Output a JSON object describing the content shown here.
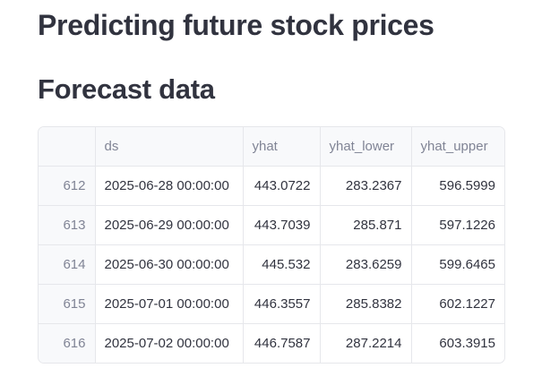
{
  "page": {
    "title": "Predicting future stock prices",
    "section_title": "Forecast data"
  },
  "table": {
    "columns": [
      "",
      "ds",
      "yhat",
      "yhat_lower",
      "yhat_upper"
    ],
    "rows": [
      {
        "index": "612",
        "ds": "2025-06-28 00:00:00",
        "yhat": "443.0722",
        "yhat_lower": "283.2367",
        "yhat_upper": "596.5999"
      },
      {
        "index": "613",
        "ds": "2025-06-29 00:00:00",
        "yhat": "443.7039",
        "yhat_lower": "285.871",
        "yhat_upper": "597.1226"
      },
      {
        "index": "614",
        "ds": "2025-06-30 00:00:00",
        "yhat": "445.532",
        "yhat_lower": "283.6259",
        "yhat_upper": "599.6465"
      },
      {
        "index": "615",
        "ds": "2025-07-01 00:00:00",
        "yhat": "446.3557",
        "yhat_lower": "285.8382",
        "yhat_upper": "602.1227"
      },
      {
        "index": "616",
        "ds": "2025-07-02 00:00:00",
        "yhat": "446.7587",
        "yhat_lower": "287.2214",
        "yhat_upper": "603.3915"
      }
    ]
  }
}
